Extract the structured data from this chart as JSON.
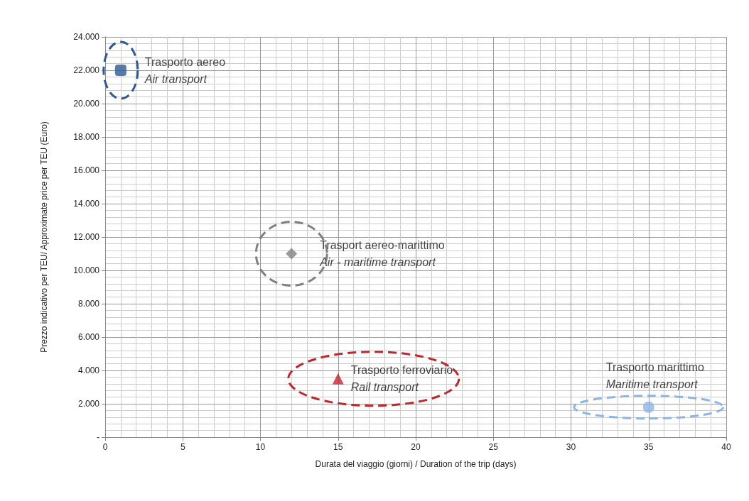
{
  "chart_data": {
    "type": "scatter",
    "xlabel": "Durata del viaggio (giorni) / Duration of the trip (days)",
    "ylabel": "Prezzo indicativo per TEU/ Approximate price per TEU (Euro)",
    "xlim": [
      0,
      40
    ],
    "xticks": [
      0,
      5,
      10,
      15,
      20,
      25,
      30,
      35,
      40
    ],
    "ylim": [
      0,
      24000
    ],
    "yticks": [
      {
        "value": 0,
        "label": "-"
      },
      {
        "value": 2000,
        "label": "2.000"
      },
      {
        "value": 4000,
        "label": "4.000"
      },
      {
        "value": 6000,
        "label": "6.000"
      },
      {
        "value": 8000,
        "label": "8.000"
      },
      {
        "value": 10000,
        "label": "10.000"
      },
      {
        "value": 12000,
        "label": "12.000"
      },
      {
        "value": 14000,
        "label": "14.000"
      },
      {
        "value": 16000,
        "label": "16.000"
      },
      {
        "value": 18000,
        "label": "18.000"
      },
      {
        "value": 20000,
        "label": "20.000"
      },
      {
        "value": 22000,
        "label": "22.000"
      },
      {
        "value": 24000,
        "label": "24.000"
      }
    ],
    "grid": true,
    "legend": false,
    "series": [
      {
        "name": "Trasporto aereo\nAir transport",
        "color": "#2e5b94",
        "marker": "square",
        "x": [
          1
        ],
        "values": [
          22000
        ]
      },
      {
        "name": "Trasport aereo-marittimo\nAir - maritime transport",
        "color": "#808080",
        "marker": "diamond",
        "x": [
          12
        ],
        "values": [
          11000
        ]
      },
      {
        "name": "Trasporto ferroviario\nRail transport",
        "color": "#c0272d",
        "marker": "triangle",
        "x": [
          15
        ],
        "values": [
          3500
        ]
      },
      {
        "name": "Trasporto marittimo\nMaritime transport",
        "color": "#8db4e2",
        "marker": "circle",
        "x": [
          35
        ],
        "values": [
          1800
        ]
      }
    ]
  }
}
